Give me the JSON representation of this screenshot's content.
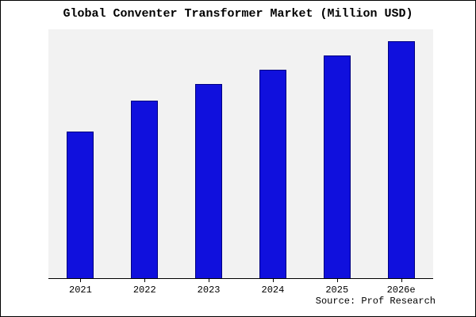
{
  "title": "Global Conventer Transformer Market (Million USD)",
  "source": "Source: Prof Research",
  "colors": {
    "bar_fill": "#1010dd",
    "bar_edge": "#000080",
    "plot_bg": "#f2f2f2",
    "frame_border": "#000000"
  },
  "chart_data": {
    "type": "bar",
    "title": "Global Conventer Transformer Market (Million USD)",
    "categories": [
      "2021",
      "2022",
      "2023",
      "2024",
      "2025",
      "2026e"
    ],
    "values": [
      62,
      75,
      82,
      88,
      94,
      100
    ],
    "xlabel": "",
    "ylabel": "",
    "ylim": [
      0,
      105
    ],
    "grid": false,
    "legend": false,
    "annotation": "Source: Prof Research"
  }
}
